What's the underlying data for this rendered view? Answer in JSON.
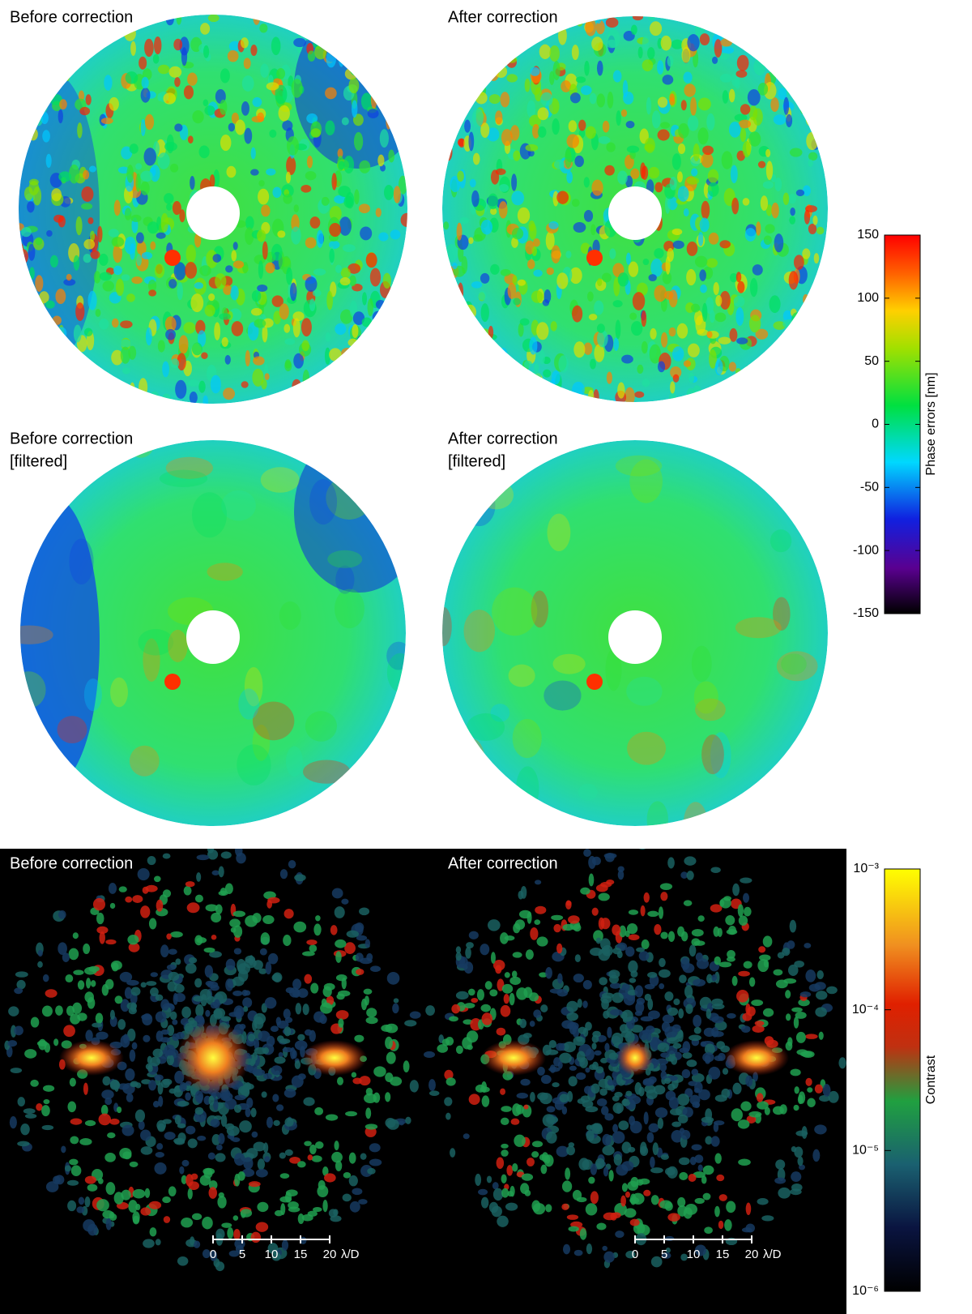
{
  "phase_panels": [
    {
      "lines": [
        "Before correction"
      ]
    },
    {
      "lines": [
        "After correction"
      ]
    },
    {
      "lines": [
        "Before correction",
        "[filtered]"
      ]
    },
    {
      "lines": [
        "After correction",
        "[filtered]"
      ]
    }
  ],
  "phase_colorbar": {
    "label": "Phase errors [nm]",
    "lim": [
      -150,
      150
    ],
    "ticks": [
      150,
      100,
      50,
      0,
      -50,
      -100,
      -150
    ]
  },
  "contrast_panels": [
    {
      "lines": [
        "Before correction"
      ]
    },
    {
      "lines": [
        "After correction"
      ]
    }
  ],
  "contrast_colorbar": {
    "label": "Contrast",
    "log": true,
    "lim": [
      1e-06,
      0.001
    ],
    "ticks": [
      {
        "value": 0.001,
        "label": "10⁻³"
      },
      {
        "value": 0.0001,
        "label": "10⁻⁴"
      },
      {
        "value": 1e-05,
        "label": "10⁻⁵"
      },
      {
        "value": 1e-06,
        "label": "10⁻⁶"
      }
    ]
  },
  "scale_bar": {
    "lim": [
      0,
      20
    ],
    "ticks": [
      0,
      5,
      10,
      15,
      20
    ],
    "unit": "λ/D"
  }
}
